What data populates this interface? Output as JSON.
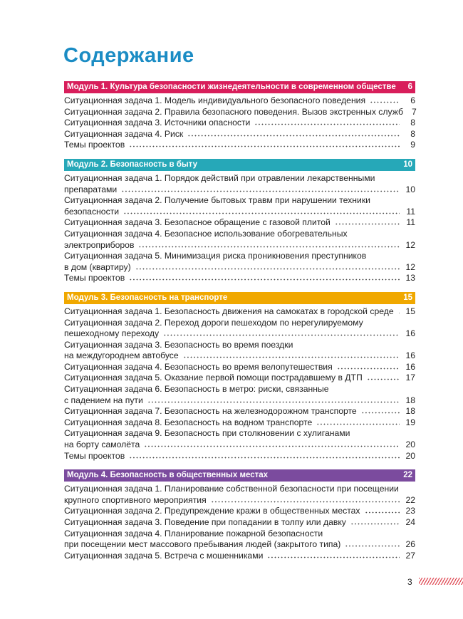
{
  "title": "Содержание",
  "modules": [
    {
      "title": "Модуль 1. Культура безопасности жизнедеятельности в современном обществе",
      "page": 6,
      "color": "#d81e5b",
      "entries": [
        {
          "lines": [
            "Ситуационная задача 1. Модель индивидуального безопасного поведения"
          ],
          "page": 6
        },
        {
          "lines": [
            "Ситуационная задача 2. Правила безопасного поведения. Вызов экстренных служб"
          ],
          "page": 7
        },
        {
          "lines": [
            "Ситуационная задача 3. Источники опасности"
          ],
          "page": 8
        },
        {
          "lines": [
            "Ситуационная задача 4. Риск"
          ],
          "page": 8
        },
        {
          "lines": [
            "Темы проектов"
          ],
          "page": 9
        }
      ]
    },
    {
      "title": "Модуль 2. Безопасность в быту",
      "page": 10,
      "color": "#26a8b8",
      "entries": [
        {
          "lines": [
            "Ситуационная задача 1. Порядок действий при отравлении лекарственными",
            "препаратами"
          ],
          "page": 10
        },
        {
          "lines": [
            "Ситуационная задача 2. Получение бытовых травм при нарушении техники",
            "безопасности"
          ],
          "page": 11
        },
        {
          "lines": [
            "Ситуационная задача 3. Безопасное обращение с газовой плитой"
          ],
          "page": 11
        },
        {
          "lines": [
            "Ситуационная задача 4. Безопасное использование обогревательных",
            "электроприборов"
          ],
          "page": 12
        },
        {
          "lines": [
            "Ситуационная задача 5. Минимизация риска проникновения преступников",
            "в дом (квартиру)"
          ],
          "page": 12
        },
        {
          "lines": [
            "Темы проектов"
          ],
          "page": 13
        }
      ]
    },
    {
      "title": "Модуль 3. Безопасность на транспорте",
      "page": 15,
      "color": "#f0a800",
      "entries": [
        {
          "lines": [
            "Ситуационная задача 1. Безопасность движения на самокатах в городской среде"
          ],
          "page": 15
        },
        {
          "lines": [
            "Ситуационная задача 2. Переход дороги пешеходом по нерегулируемому",
            "пешеходному переходу"
          ],
          "page": 16
        },
        {
          "lines": [
            "Ситуационная задача 3. Безопасность во время поездки",
            "на междугороднем автобусе"
          ],
          "page": 16
        },
        {
          "lines": [
            "Ситуационная задача 4. Безопасность во время велопутешествия"
          ],
          "page": 16
        },
        {
          "lines": [
            "Ситуационная задача 5. Оказание первой помощи пострадавшему в ДТП"
          ],
          "page": 17
        },
        {
          "lines": [
            "Ситуационная задача 6. Безопасность в метро: риски, связанные",
            "с падением на пути"
          ],
          "page": 18
        },
        {
          "lines": [
            "Ситуационная задача 7. Безопасность на железнодорожном транспорте"
          ],
          "page": 18
        },
        {
          "lines": [
            "Ситуационная задача 8. Безопасность на водном транспорте"
          ],
          "page": 19
        },
        {
          "lines": [
            "Ситуационная задача 9. Безопасность при столкновении с хулиганами",
            "на борту самолёта"
          ],
          "page": 20
        },
        {
          "lines": [
            "Темы проектов"
          ],
          "page": 20
        }
      ]
    },
    {
      "title": "Модуль 4. Безопасность в общественных местах",
      "page": 22,
      "color": "#7b4b9e",
      "entries": [
        {
          "lines": [
            "Ситуационная задача 1. Планирование собственной безопасности при посещении",
            "крупного спортивного мероприятия"
          ],
          "page": 22
        },
        {
          "lines": [
            "Ситуационная задача 2. Предупреждение кражи в общественных местах"
          ],
          "page": 23
        },
        {
          "lines": [
            "Ситуационная задача 3. Поведение при попадании в толпу или давку"
          ],
          "page": 24
        },
        {
          "lines": [
            "Ситуационная задача 4. Планирование пожарной безопасности",
            "при посещении мест массового пребывания людей (закрытого типа)"
          ],
          "page": 26
        },
        {
          "lines": [
            "Ситуационная задача 5. Встреча с мошенниками"
          ],
          "page": 27
        }
      ]
    }
  ],
  "footer": {
    "page": 3
  }
}
